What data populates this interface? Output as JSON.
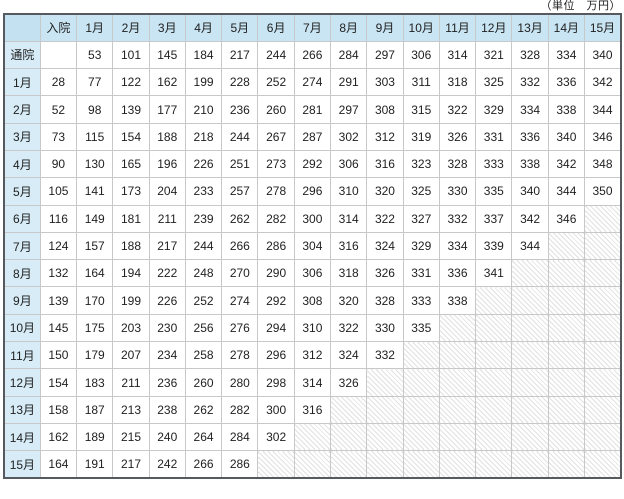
{
  "note": "（単位　万円）",
  "table": {
    "corner_label": "",
    "columns": [
      "入院",
      "1月",
      "2月",
      "3月",
      "4月",
      "5月",
      "6月",
      "7月",
      "8月",
      "9月",
      "10月",
      "11月",
      "12月",
      "13月",
      "14月",
      "15月"
    ],
    "rows": [
      {
        "label": "通院",
        "values": [
          "",
          53,
          101,
          145,
          184,
          217,
          244,
          266,
          284,
          297,
          306,
          314,
          321,
          328,
          334,
          340
        ]
      },
      {
        "label": "1月",
        "values": [
          28,
          77,
          122,
          162,
          199,
          228,
          252,
          274,
          291,
          303,
          311,
          318,
          325,
          332,
          336,
          342
        ]
      },
      {
        "label": "2月",
        "values": [
          52,
          98,
          139,
          177,
          210,
          236,
          260,
          281,
          297,
          308,
          315,
          322,
          329,
          334,
          338,
          344
        ]
      },
      {
        "label": "3月",
        "values": [
          73,
          115,
          154,
          188,
          218,
          244,
          267,
          287,
          302,
          312,
          319,
          326,
          331,
          336,
          340,
          346
        ]
      },
      {
        "label": "4月",
        "values": [
          90,
          130,
          165,
          196,
          226,
          251,
          273,
          292,
          306,
          316,
          323,
          328,
          333,
          338,
          342,
          348
        ]
      },
      {
        "label": "5月",
        "values": [
          105,
          141,
          173,
          204,
          233,
          257,
          278,
          296,
          310,
          320,
          325,
          330,
          335,
          340,
          344,
          350
        ]
      },
      {
        "label": "6月",
        "values": [
          116,
          149,
          181,
          211,
          239,
          262,
          282,
          300,
          314,
          322,
          327,
          332,
          337,
          342,
          346,
          null
        ]
      },
      {
        "label": "7月",
        "values": [
          124,
          157,
          188,
          217,
          244,
          266,
          286,
          304,
          316,
          324,
          329,
          334,
          339,
          344,
          null,
          null
        ]
      },
      {
        "label": "8月",
        "values": [
          132,
          164,
          194,
          222,
          248,
          270,
          290,
          306,
          318,
          326,
          331,
          336,
          341,
          null,
          null,
          null
        ]
      },
      {
        "label": "9月",
        "values": [
          139,
          170,
          199,
          226,
          252,
          274,
          292,
          308,
          320,
          328,
          333,
          338,
          null,
          null,
          null,
          null
        ]
      },
      {
        "label": "10月",
        "values": [
          145,
          175,
          203,
          230,
          256,
          276,
          294,
          310,
          322,
          330,
          335,
          null,
          null,
          null,
          null,
          null
        ]
      },
      {
        "label": "11月",
        "values": [
          150,
          179,
          207,
          234,
          258,
          278,
          296,
          312,
          324,
          332,
          null,
          null,
          null,
          null,
          null,
          null
        ]
      },
      {
        "label": "12月",
        "values": [
          154,
          183,
          211,
          236,
          260,
          280,
          298,
          314,
          326,
          null,
          null,
          null,
          null,
          null,
          null,
          null
        ]
      },
      {
        "label": "13月",
        "values": [
          158,
          187,
          213,
          238,
          262,
          282,
          300,
          316,
          null,
          null,
          null,
          null,
          null,
          null,
          null,
          null
        ]
      },
      {
        "label": "14月",
        "values": [
          162,
          189,
          215,
          240,
          264,
          284,
          302,
          null,
          null,
          null,
          null,
          null,
          null,
          null,
          null,
          null
        ]
      },
      {
        "label": "15月",
        "values": [
          164,
          191,
          217,
          242,
          266,
          286,
          null,
          null,
          null,
          null,
          null,
          null,
          null,
          null,
          null,
          null
        ]
      }
    ]
  },
  "colors": {
    "header_bg": "#c9e4f2",
    "row_label_bg": "#d7ecf7",
    "outer_border": "#565a5e",
    "grid_border": "#c6c8ca",
    "hatch_line": "#e2e2e2"
  }
}
